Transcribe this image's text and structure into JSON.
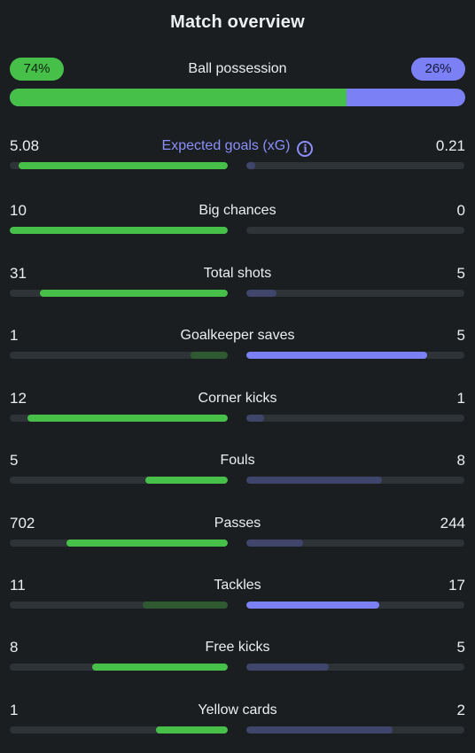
{
  "header": {
    "title": "Match overview"
  },
  "possession": {
    "label": "Ball possession",
    "home": "74%",
    "away": "26%",
    "home_fraction": 0.74
  },
  "stats": [
    {
      "label": "Expected goals (xG)",
      "home": "5.08",
      "away": "0.21",
      "home_fill": 0.96,
      "away_fill": 0.04,
      "winner": "home",
      "has_info": true
    },
    {
      "label": "Big chances",
      "home": "10",
      "away": "0",
      "home_fill": 1.0,
      "away_fill": 0.0,
      "winner": "home"
    },
    {
      "label": "Total shots",
      "home": "31",
      "away": "5",
      "home_fill": 0.86,
      "away_fill": 0.14,
      "winner": "home"
    },
    {
      "label": "Goalkeeper saves",
      "home": "1",
      "away": "5",
      "home_fill": 0.17,
      "away_fill": 0.83,
      "winner": "away"
    },
    {
      "label": "Corner kicks",
      "home": "12",
      "away": "1",
      "home_fill": 0.92,
      "away_fill": 0.08,
      "winner": "home"
    },
    {
      "label": "Fouls",
      "home": "5",
      "away": "8",
      "home_fill": 0.38,
      "away_fill": 0.62,
      "winner": "home"
    },
    {
      "label": "Passes",
      "home": "702",
      "away": "244",
      "home_fill": 0.74,
      "away_fill": 0.26,
      "winner": "home"
    },
    {
      "label": "Tackles",
      "home": "11",
      "away": "17",
      "home_fill": 0.39,
      "away_fill": 0.61,
      "winner": "away"
    },
    {
      "label": "Free kicks",
      "home": "8",
      "away": "5",
      "home_fill": 0.62,
      "away_fill": 0.38,
      "winner": "home"
    },
    {
      "label": "Yellow cards",
      "home": "1",
      "away": "2",
      "home_fill": 0.33,
      "away_fill": 0.67,
      "winner": "home"
    }
  ],
  "colors": {
    "home": "#47c04a",
    "away": "#7c80f5",
    "home_muted": "#2f5a31",
    "away_muted": "#40456b",
    "track": "#2e3338",
    "background": "#1b1e21"
  }
}
